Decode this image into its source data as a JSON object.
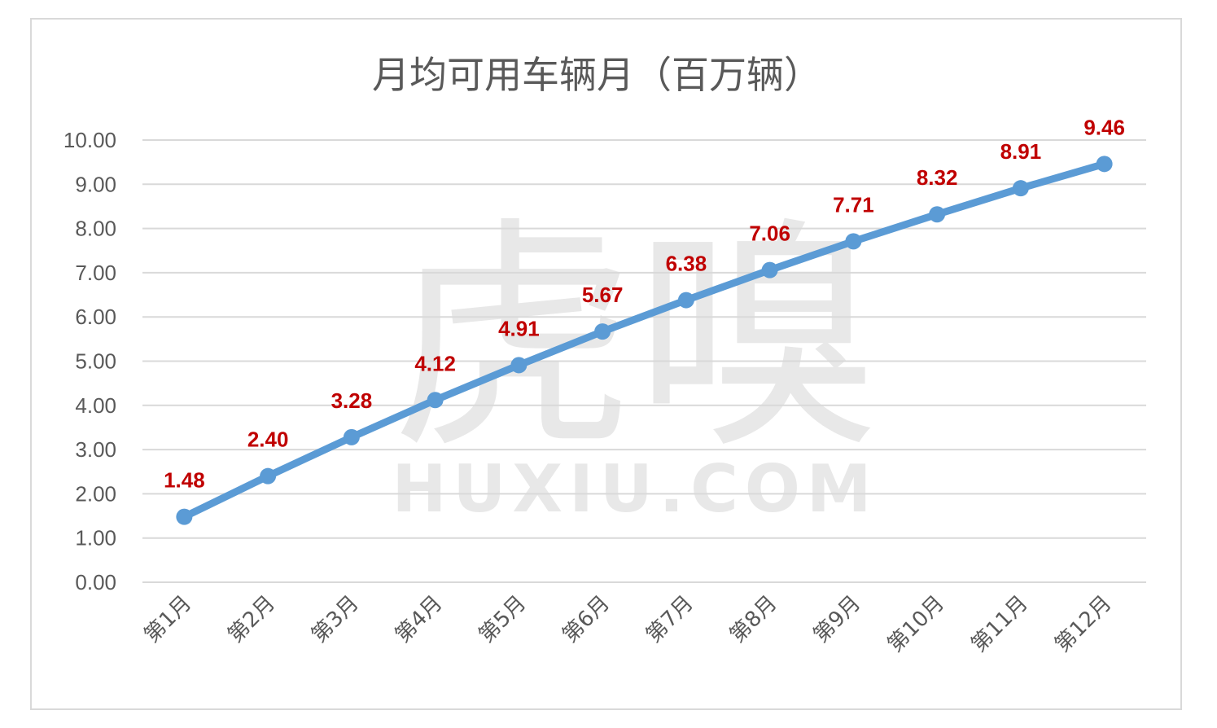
{
  "chart_data": {
    "type": "line",
    "title": "月均可用车辆月（百万辆）",
    "categories": [
      "第1月",
      "第2月",
      "第3月",
      "第4月",
      "第5月",
      "第6月",
      "第7月",
      "第8月",
      "第9月",
      "第10月",
      "第11月",
      "第12月"
    ],
    "series": [
      {
        "values": [
          1.48,
          2.4,
          3.28,
          4.12,
          4.91,
          5.67,
          6.38,
          7.06,
          7.71,
          8.32,
          8.91,
          9.46
        ]
      }
    ],
    "data_labels": [
      "1.48",
      "2.40",
      "3.28",
      "4.12",
      "4.91",
      "5.67",
      "6.38",
      "7.06",
      "7.71",
      "8.32",
      "8.91",
      "9.46"
    ],
    "ylim": [
      0,
      10
    ],
    "yticks": [
      "0.00",
      "1.00",
      "2.00",
      "3.00",
      "4.00",
      "5.00",
      "6.00",
      "7.00",
      "8.00",
      "9.00",
      "10.00"
    ],
    "grid": true,
    "line_color": "#5b9bd5",
    "label_color": "#c00000",
    "watermark": {
      "glyphs": "虎嗅",
      "text": "HUXIU.COM"
    }
  }
}
